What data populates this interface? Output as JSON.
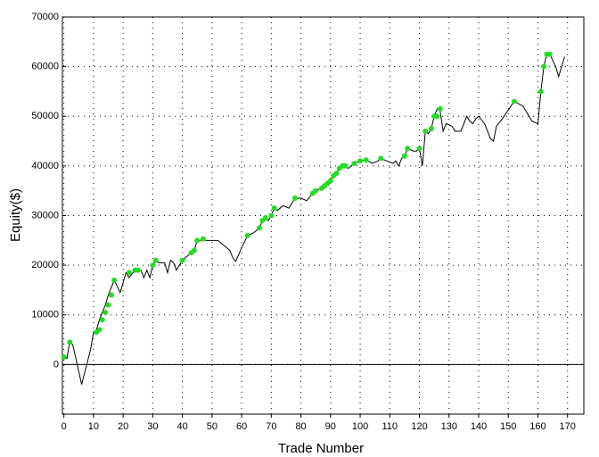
{
  "chart_data": {
    "type": "line",
    "x_label": "Trade Number",
    "y_label": "Equity($)",
    "xlim": [
      -0.5,
      175.5
    ],
    "ylim": [
      -10000,
      70000
    ],
    "xticks": [
      0,
      10,
      20,
      30,
      40,
      50,
      60,
      70,
      80,
      90,
      100,
      110,
      120,
      130,
      140,
      150,
      160,
      170
    ],
    "yticks": [
      0,
      10000,
      20000,
      30000,
      40000,
      50000,
      60000,
      70000
    ],
    "grid": true,
    "series": [
      {
        "mode": "line",
        "color": "#000000",
        "x": [
          0,
          1,
          2,
          3,
          6,
          9,
          10,
          11,
          12,
          13,
          14,
          15,
          16,
          17,
          19,
          21,
          22,
          24,
          26,
          27,
          28,
          29,
          30,
          31,
          32,
          34,
          35,
          36,
          37,
          38,
          40,
          42,
          43,
          44,
          45,
          46,
          47,
          48,
          52,
          56,
          57,
          58,
          60,
          62,
          64,
          66,
          67,
          68,
          69,
          70,
          71,
          72,
          74,
          76,
          78,
          80,
          82,
          84,
          85,
          87,
          88,
          89,
          90,
          91,
          92,
          93,
          94,
          95,
          96,
          98,
          100,
          102,
          104,
          106,
          107,
          109,
          111,
          112,
          113,
          114,
          115,
          116,
          118,
          119,
          120,
          121,
          122,
          123,
          124,
          125,
          126,
          127,
          128,
          129,
          131,
          132,
          134,
          136,
          137,
          138,
          139,
          140,
          142,
          144,
          145,
          146,
          148,
          152,
          155,
          157,
          158,
          160,
          161,
          162,
          163,
          164,
          166,
          167,
          169
        ],
        "values": [
          1500,
          1200,
          4500,
          4000,
          -4000,
          3000,
          6500,
          7000,
          9000,
          10500,
          12000,
          14000,
          15500,
          17000,
          14500,
          18500,
          17500,
          19000,
          19000,
          17500,
          19000,
          17500,
          20000,
          21000,
          20500,
          20500,
          18500,
          21000,
          20500,
          19000,
          21000,
          22000,
          22500,
          23000,
          25000,
          25000,
          25300,
          25000,
          25000,
          23000,
          21500,
          20800,
          23500,
          26000,
          26500,
          27500,
          29000,
          29500,
          29000,
          30000,
          31500,
          31000,
          32000,
          31500,
          33500,
          33500,
          33000,
          34500,
          35000,
          35500,
          36000,
          36500,
          37000,
          38000,
          38500,
          39500,
          40000,
          40000,
          39500,
          40500,
          41000,
          41200,
          40500,
          41000,
          41500,
          41000,
          40500,
          41000,
          40000,
          41500,
          42000,
          43500,
          43000,
          43000,
          43500,
          40000,
          47000,
          46500,
          47500,
          50000,
          51500,
          51000,
          47000,
          48500,
          48000,
          47000,
          47000,
          50000,
          49000,
          48500,
          49500,
          50000,
          48500,
          45500,
          45000,
          48000,
          49500,
          53000,
          52000,
          50000,
          49000,
          48500,
          55000,
          60000,
          62500,
          62500,
          60000,
          58000,
          62000
        ]
      },
      {
        "mode": "markers",
        "color": "#22dd22",
        "x": [
          0,
          2,
          11,
          12,
          13,
          14,
          15,
          16,
          17,
          22,
          24,
          25,
          30,
          31,
          40,
          43,
          44,
          45,
          47,
          62,
          66,
          67,
          68,
          70,
          71,
          78,
          84,
          85,
          87,
          88,
          89,
          90,
          91,
          92,
          93,
          94,
          95,
          98,
          100,
          102,
          107,
          115,
          116,
          120,
          122,
          124,
          125,
          126,
          127,
          152,
          161,
          162,
          163,
          164
        ],
        "values": [
          1500,
          4500,
          6500,
          7000,
          9000,
          10500,
          12000,
          14000,
          17000,
          18500,
          19000,
          19000,
          20000,
          21000,
          21000,
          22500,
          23000,
          25000,
          25300,
          26000,
          27500,
          29000,
          29500,
          30000,
          31500,
          33500,
          34500,
          35000,
          35500,
          36000,
          36500,
          37000,
          38000,
          38500,
          39500,
          40000,
          40000,
          40500,
          41000,
          41200,
          41500,
          42000,
          43500,
          43500,
          47000,
          47500,
          50000,
          50000,
          51500,
          53000,
          55000,
          60000,
          62500,
          62500
        ]
      }
    ]
  }
}
